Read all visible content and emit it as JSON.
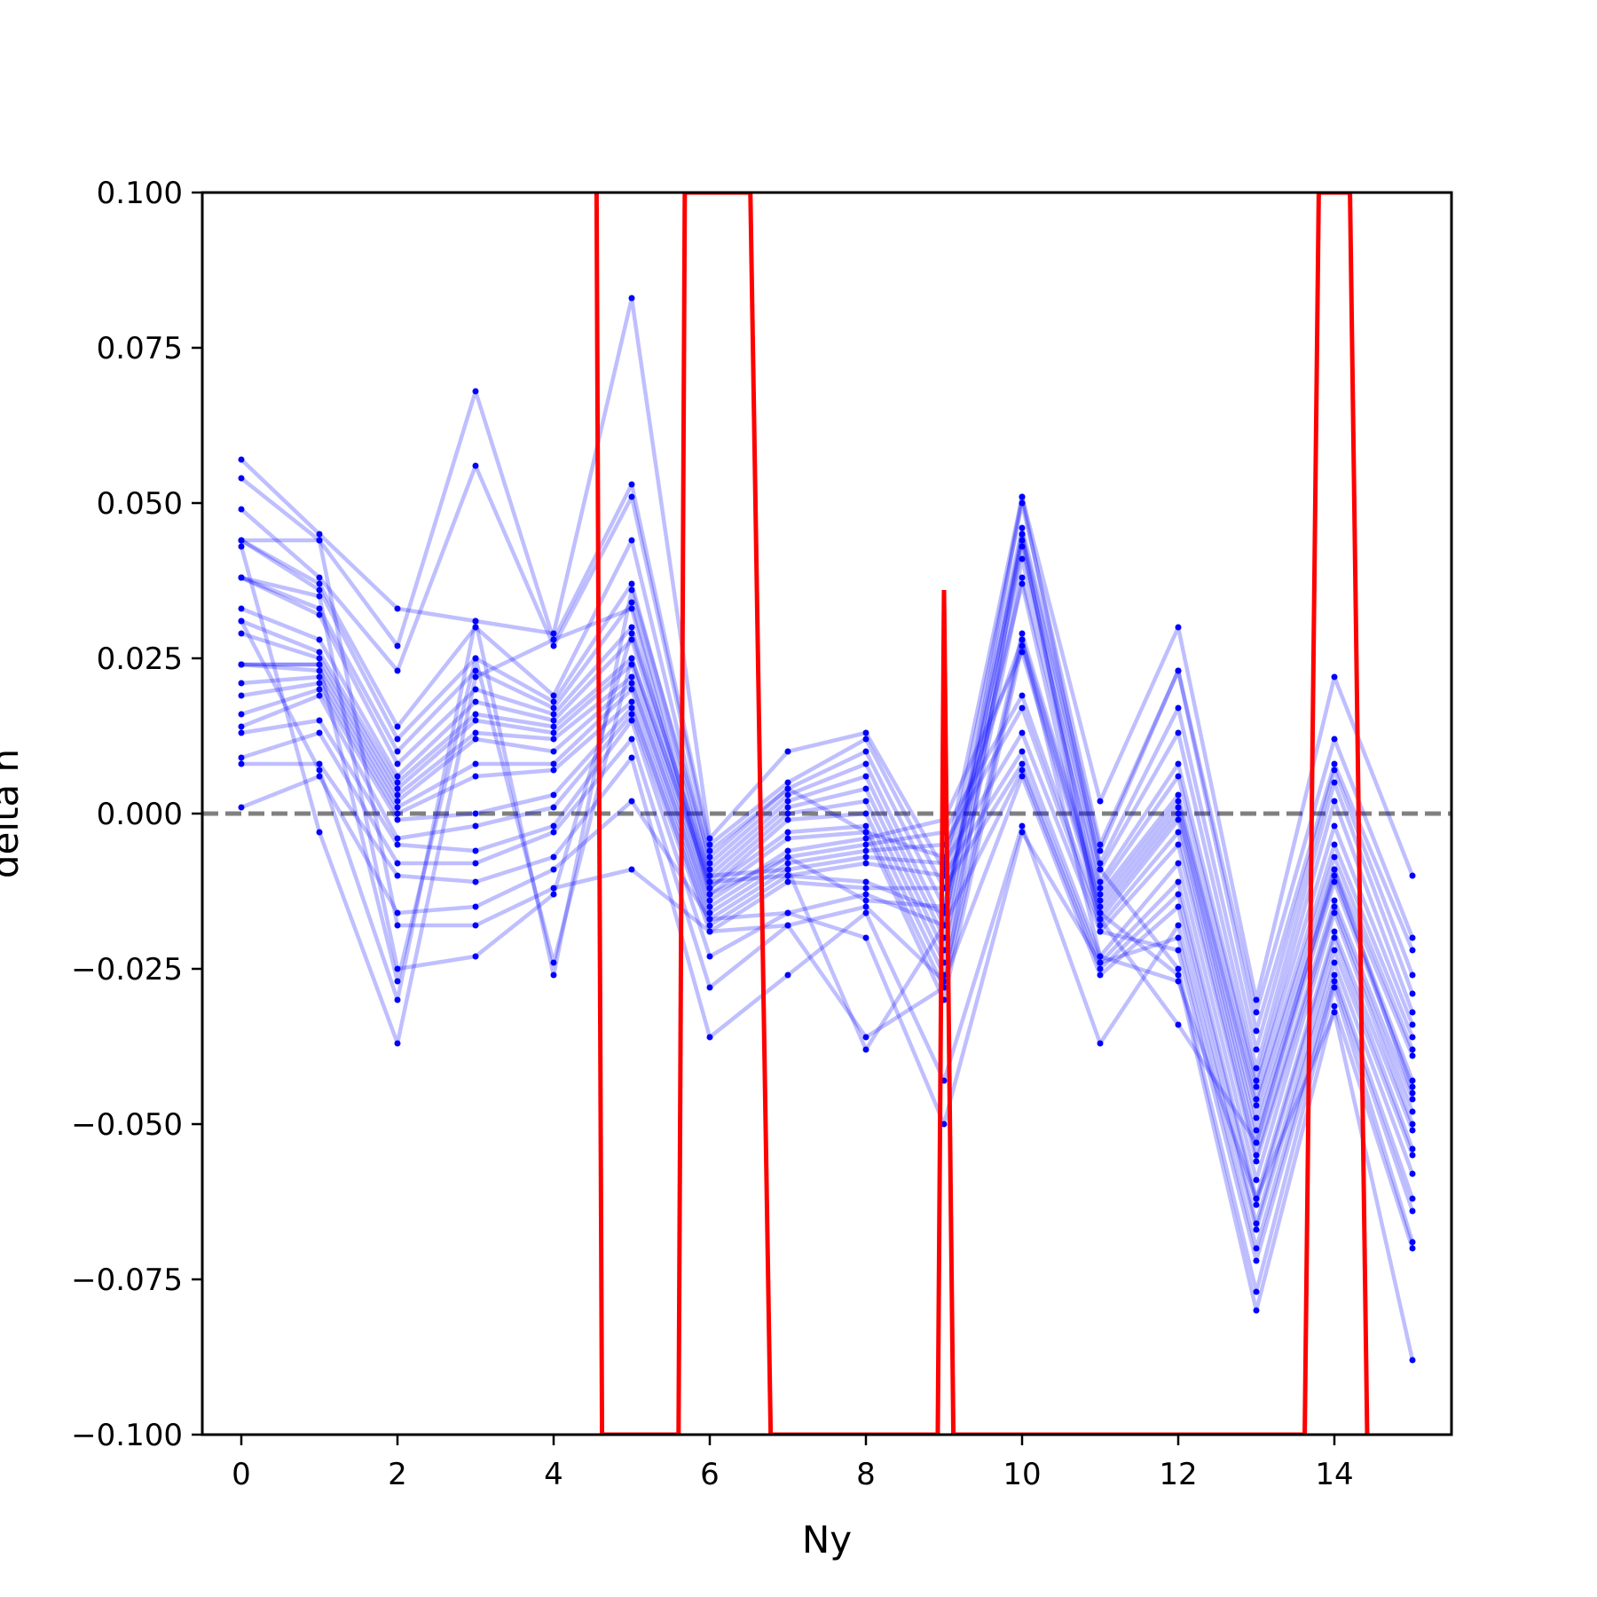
{
  "chart_data": {
    "type": "line",
    "title": "",
    "xlabel": "Ny",
    "ylabel": "delta n",
    "xlim": [
      -0.5,
      15.5
    ],
    "ylim": [
      -0.1,
      0.1
    ],
    "xticks": [
      0,
      2,
      4,
      6,
      8,
      10,
      12,
      14
    ],
    "xtick_labels": [
      "0",
      "2",
      "4",
      "6",
      "8",
      "10",
      "12",
      "14"
    ],
    "yticks": [
      -0.1,
      -0.075,
      -0.05,
      -0.025,
      0.0,
      0.025,
      0.05,
      0.075,
      0.1
    ],
    "ytick_labels": [
      "−0.100",
      "−0.075",
      "−0.050",
      "−0.025",
      "0.000",
      "0.025",
      "0.050",
      "0.075",
      "0.100"
    ],
    "grid": false,
    "reference_line": {
      "y": 0.0,
      "style": "dashed",
      "color": "#808080"
    },
    "colors": {
      "runs": "#0000ff",
      "mean": "#ff0000",
      "reference": "#808080"
    },
    "x": [
      0,
      1,
      2,
      3,
      4,
      5,
      6,
      7,
      8,
      9,
      10,
      11,
      12,
      13,
      14,
      15
    ],
    "series": [
      {
        "values": [
          0.057,
          0.045,
          0.033,
          0.031,
          0.029,
          0.083,
          -0.004,
          0.01,
          0.013,
          -0.009,
          0.051,
          0.002,
          0.03,
          -0.03,
          0.022,
          -0.01
        ]
      },
      {
        "values": [
          0.054,
          0.044,
          0.027,
          0.068,
          0.028,
          0.053,
          -0.005,
          0.005,
          0.012,
          -0.012,
          0.05,
          -0.005,
          0.023,
          -0.032,
          0.012,
          -0.02
        ]
      },
      {
        "values": [
          0.049,
          0.038,
          0.023,
          0.056,
          0.027,
          0.051,
          -0.006,
          0.004,
          0.01,
          -0.015,
          0.046,
          -0.006,
          0.023,
          -0.035,
          0.008,
          -0.022
        ]
      },
      {
        "values": [
          0.044,
          0.037,
          0.014,
          0.03,
          0.019,
          0.044,
          -0.008,
          0.003,
          0.008,
          -0.018,
          0.045,
          -0.008,
          0.017,
          -0.038,
          0.007,
          -0.026
        ]
      },
      {
        "values": [
          0.044,
          0.036,
          0.012,
          0.025,
          0.018,
          0.037,
          -0.009,
          0.002,
          0.006,
          -0.02,
          0.043,
          -0.009,
          0.013,
          -0.041,
          0.005,
          -0.029
        ]
      },
      {
        "values": [
          0.038,
          0.033,
          0.01,
          0.023,
          0.017,
          0.034,
          -0.01,
          0.001,
          0.004,
          -0.022,
          0.041,
          -0.011,
          0.008,
          -0.043,
          0.002,
          -0.032
        ]
      },
      {
        "values": [
          0.038,
          0.032,
          0.008,
          0.02,
          0.016,
          0.03,
          -0.011,
          0.0,
          0.002,
          -0.024,
          0.038,
          -0.012,
          0.006,
          -0.044,
          -0.002,
          -0.034
        ]
      },
      {
        "values": [
          0.033,
          0.028,
          0.006,
          0.018,
          0.015,
          0.028,
          -0.012,
          -0.001,
          0.0,
          -0.026,
          0.029,
          -0.013,
          0.003,
          -0.046,
          -0.005,
          -0.036
        ]
      },
      {
        "values": [
          0.031,
          0.026,
          0.005,
          0.016,
          0.014,
          0.025,
          -0.012,
          -0.003,
          -0.002,
          -0.028,
          0.028,
          -0.014,
          0.002,
          -0.047,
          -0.007,
          -0.038
        ]
      },
      {
        "values": [
          0.029,
          0.025,
          0.004,
          0.015,
          0.013,
          0.024,
          -0.013,
          -0.004,
          -0.003,
          -0.03,
          0.027,
          -0.015,
          0.001,
          -0.049,
          -0.009,
          -0.039
        ]
      },
      {
        "values": [
          0.024,
          0.024,
          0.003,
          0.013,
          0.012,
          0.022,
          -0.014,
          -0.006,
          -0.004,
          -0.001,
          0.026,
          -0.016,
          0.0,
          -0.051,
          -0.01,
          -0.043
        ]
      },
      {
        "values": [
          0.024,
          0.023,
          0.002,
          0.012,
          0.01,
          0.021,
          -0.015,
          -0.007,
          -0.005,
          -0.003,
          0.019,
          -0.017,
          -0.001,
          -0.053,
          -0.011,
          -0.044
        ]
      },
      {
        "values": [
          0.021,
          0.022,
          0.001,
          0.008,
          0.008,
          0.02,
          -0.016,
          -0.008,
          -0.006,
          -0.005,
          0.017,
          -0.018,
          -0.003,
          -0.055,
          -0.014,
          -0.046
        ]
      },
      {
        "values": [
          0.019,
          0.021,
          0.0,
          0.006,
          0.007,
          0.018,
          -0.017,
          -0.009,
          -0.007,
          -0.008,
          0.013,
          -0.019,
          -0.005,
          -0.056,
          -0.015,
          -0.048
        ]
      },
      {
        "values": [
          0.016,
          0.02,
          -0.001,
          0.0,
          0.003,
          0.017,
          -0.018,
          -0.01,
          -0.008,
          -0.01,
          0.01,
          -0.023,
          -0.008,
          -0.059,
          -0.016,
          -0.05
        ]
      },
      {
        "values": [
          0.014,
          0.019,
          -0.004,
          -0.002,
          0.001,
          0.016,
          -0.019,
          -0.011,
          -0.012,
          -0.012,
          0.008,
          -0.024,
          -0.011,
          -0.062,
          -0.019,
          -0.051
        ]
      },
      {
        "values": [
          0.013,
          0.015,
          -0.005,
          -0.006,
          -0.002,
          0.015,
          -0.023,
          -0.016,
          -0.013,
          -0.018,
          0.007,
          -0.025,
          -0.013,
          -0.063,
          -0.02,
          -0.054
        ]
      },
      {
        "values": [
          0.009,
          0.013,
          -0.008,
          -0.008,
          -0.003,
          0.012,
          -0.028,
          -0.018,
          -0.015,
          -0.027,
          0.006,
          -0.026,
          -0.015,
          -0.066,
          -0.022,
          -0.055
        ]
      },
      {
        "values": [
          0.008,
          0.008,
          -0.01,
          -0.011,
          -0.007,
          0.009,
          -0.036,
          -0.026,
          -0.016,
          -0.043,
          -0.002,
          -0.037,
          -0.018,
          -0.067,
          -0.024,
          -0.058
        ]
      },
      {
        "values": [
          0.001,
          0.006,
          -0.016,
          -0.015,
          -0.009,
          0.002,
          -0.017,
          -0.016,
          -0.02,
          -0.05,
          -0.003,
          -0.024,
          -0.02,
          -0.07,
          -0.026,
          -0.062
        ]
      },
      {
        "values": [
          0.044,
          0.044,
          -0.018,
          -0.018,
          -0.012,
          -0.009,
          -0.019,
          -0.018,
          -0.036,
          -0.028,
          0.045,
          -0.019,
          -0.022,
          -0.072,
          -0.027,
          -0.064
        ]
      },
      {
        "values": [
          0.038,
          0.035,
          -0.025,
          -0.023,
          -0.013,
          0.029,
          -0.01,
          -0.009,
          -0.038,
          -0.018,
          0.051,
          -0.009,
          -0.025,
          -0.077,
          -0.028,
          -0.069
        ]
      },
      {
        "values": [
          0.024,
          0.024,
          -0.027,
          0.025,
          -0.024,
          0.025,
          -0.011,
          -0.01,
          -0.011,
          -0.016,
          0.044,
          -0.016,
          -0.026,
          -0.08,
          -0.031,
          -0.07
        ]
      },
      {
        "values": [
          0.031,
          0.007,
          -0.03,
          0.031,
          -0.026,
          0.036,
          -0.007,
          0.004,
          -0.003,
          -0.007,
          0.028,
          -0.023,
          -0.027,
          -0.062,
          -0.032,
          -0.088
        ]
      },
      {
        "values": [
          0.043,
          -0.003,
          -0.037,
          0.022,
          0.028,
          0.033,
          -0.013,
          -0.007,
          -0.014,
          -0.015,
          0.037,
          -0.017,
          -0.034,
          -0.053,
          -0.009,
          -0.045
        ]
      }
    ],
    "mean_line": {
      "x": [
        4.55,
        4.62,
        5.6,
        5.68,
        6.52,
        6.78,
        8.92,
        9.0,
        9.12,
        13.62,
        13.8,
        14.2,
        14.42
      ],
      "values": [
        0.1,
        -0.1,
        -0.1,
        0.1,
        0.1,
        -0.1,
        -0.1,
        0.036,
        -0.1,
        -0.1,
        0.1,
        0.1,
        -0.1
      ]
    }
  }
}
